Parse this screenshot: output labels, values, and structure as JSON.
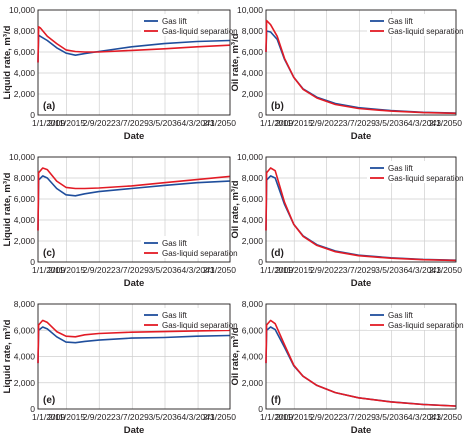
{
  "colors": {
    "gas_lift": "#1f4e9c",
    "gas_liquid_separation": "#e21b25"
  },
  "chart_data": [
    {
      "type": "line",
      "panel": "(a)",
      "xlabel": "Date",
      "ylabel": "Liquid rate, m³/d",
      "xlim": [
        "2009-01-01",
        "2050-02-01"
      ],
      "ylim": [
        0,
        10000
      ],
      "xticks": [
        "1/1/2009",
        "2/11/2015",
        "2/9/2022",
        "3/7/2029",
        "3/5/2036",
        "4/3/2043",
        "2/1/2050"
      ],
      "yticks": [
        "0",
        "2,000",
        "4,000",
        "6,000",
        "8,000",
        "10,000"
      ],
      "grid": true,
      "legend": "top-right",
      "series": [
        {
          "name": "Gas lift",
          "points": [
            [
              "2009-01-01",
              5000
            ],
            [
              "2009-02-15",
              7600
            ],
            [
              "2009-07-01",
              7500
            ],
            [
              "2011-01-01",
              7100
            ],
            [
              "2013-01-01",
              6400
            ],
            [
              "2015-01-01",
              5900
            ],
            [
              "2017-01-01",
              5700
            ],
            [
              "2019-01-01",
              5850
            ],
            [
              "2022-01-01",
              6050
            ],
            [
              "2029-01-01",
              6500
            ],
            [
              "2036-01-01",
              6800
            ],
            [
              "2043-01-01",
              7000
            ],
            [
              "2050-01-01",
              7100
            ]
          ]
        },
        {
          "name": "Gas-liquid separation",
          "points": [
            [
              "2009-01-01",
              5000
            ],
            [
              "2009-02-15",
              8400
            ],
            [
              "2009-07-01",
              8300
            ],
            [
              "2011-01-01",
              7500
            ],
            [
              "2013-01-01",
              6800
            ],
            [
              "2015-01-01",
              6200
            ],
            [
              "2017-01-01",
              6050
            ],
            [
              "2019-01-01",
              6000
            ],
            [
              "2022-01-01",
              6000
            ],
            [
              "2029-01-01",
              6150
            ],
            [
              "2036-01-01",
              6300
            ],
            [
              "2043-01-01",
              6500
            ],
            [
              "2050-01-01",
              6650
            ]
          ]
        }
      ]
    },
    {
      "type": "line",
      "panel": "(b)",
      "xlabel": "Date",
      "ylabel": "Oil rate, m³/d",
      "xlim": [
        "2009-01-01",
        "2050-02-01"
      ],
      "ylim": [
        0,
        10000
      ],
      "xticks": [
        "1/1/2009",
        "2/11/2015",
        "2/9/2022",
        "3/7/2029",
        "3/5/2036",
        "4/3/2043",
        "2/1/2050"
      ],
      "yticks": [
        "0",
        "2,000",
        "4,000",
        "6,000",
        "8,000",
        "10,000"
      ],
      "grid": true,
      "legend": "top-right",
      "series": [
        {
          "name": "Gas lift",
          "points": [
            [
              "2009-01-01",
              6000
            ],
            [
              "2009-02-15",
              8000
            ],
            [
              "2010-01-01",
              7900
            ],
            [
              "2011-06-01",
              7200
            ],
            [
              "2013-01-01",
              5300
            ],
            [
              "2015-01-01",
              3600
            ],
            [
              "2017-01-01",
              2500
            ],
            [
              "2020-01-01",
              1700
            ],
            [
              "2024-01-01",
              1100
            ],
            [
              "2029-01-01",
              700
            ],
            [
              "2036-01-01",
              420
            ],
            [
              "2043-01-01",
              260
            ],
            [
              "2050-01-01",
              180
            ]
          ]
        },
        {
          "name": "Gas-liquid separation",
          "points": [
            [
              "2009-01-01",
              6000
            ],
            [
              "2009-02-15",
              9000
            ],
            [
              "2010-01-01",
              8600
            ],
            [
              "2011-06-01",
              7500
            ],
            [
              "2013-01-01",
              5400
            ],
            [
              "2015-01-01",
              3600
            ],
            [
              "2017-01-01",
              2450
            ],
            [
              "2020-01-01",
              1620
            ],
            [
              "2024-01-01",
              1000
            ],
            [
              "2029-01-01",
              620
            ],
            [
              "2036-01-01",
              370
            ],
            [
              "2043-01-01",
              230
            ],
            [
              "2050-01-01",
              160
            ]
          ]
        }
      ]
    },
    {
      "type": "line",
      "panel": "(c)",
      "xlabel": "Date",
      "ylabel": "Liquid rate, m³/d",
      "xlim": [
        "2009-01-01",
        "2050-02-01"
      ],
      "ylim": [
        0,
        10000
      ],
      "xticks": [
        "1/1/2009",
        "2/11/2015",
        "2/9/2022",
        "3/7/2029",
        "3/5/2036",
        "4/3/2043",
        "2/1/2050"
      ],
      "yticks": [
        "0",
        "2,000",
        "4,000",
        "6,000",
        "8,000",
        "10,000"
      ],
      "grid": true,
      "legend": "bottom-right",
      "series": [
        {
          "name": "Gas lift",
          "points": [
            [
              "2009-01-01",
              3000
            ],
            [
              "2009-02-15",
              7800
            ],
            [
              "2010-01-01",
              8200
            ],
            [
              "2011-01-01",
              8000
            ],
            [
              "2013-01-01",
              7000
            ],
            [
              "2015-01-01",
              6400
            ],
            [
              "2017-01-01",
              6300
            ],
            [
              "2019-01-01",
              6500
            ],
            [
              "2022-01-01",
              6700
            ],
            [
              "2029-01-01",
              7000
            ],
            [
              "2036-01-01",
              7300
            ],
            [
              "2043-01-01",
              7550
            ],
            [
              "2050-01-01",
              7700
            ]
          ]
        },
        {
          "name": "Gas-liquid separation",
          "points": [
            [
              "2009-01-01",
              3000
            ],
            [
              "2009-02-15",
              8500
            ],
            [
              "2010-01-01",
              8950
            ],
            [
              "2011-01-01",
              8800
            ],
            [
              "2013-01-01",
              7700
            ],
            [
              "2015-01-01",
              7100
            ],
            [
              "2017-01-01",
              7000
            ],
            [
              "2019-01-01",
              7000
            ],
            [
              "2022-01-01",
              7050
            ],
            [
              "2029-01-01",
              7250
            ],
            [
              "2036-01-01",
              7550
            ],
            [
              "2043-01-01",
              7850
            ],
            [
              "2050-01-01",
              8150
            ]
          ]
        }
      ]
    },
    {
      "type": "line",
      "panel": "(d)",
      "xlabel": "Date",
      "ylabel": "Oil rate, m³/d",
      "xlim": [
        "2009-01-01",
        "2050-02-01"
      ],
      "ylim": [
        0,
        10000
      ],
      "xticks": [
        "1/1/2009",
        "2/11/2015",
        "2/9/2022",
        "3/7/2029",
        "3/5/2036",
        "4/3/2043",
        "2/1/2050"
      ],
      "yticks": [
        "0",
        "2,000",
        "4,000",
        "6,000",
        "8,000",
        "10,000"
      ],
      "grid": true,
      "legend": "top-right",
      "series": [
        {
          "name": "Gas lift",
          "points": [
            [
              "2009-01-01",
              3000
            ],
            [
              "2009-02-15",
              7800
            ],
            [
              "2010-01-01",
              8200
            ],
            [
              "2011-01-01",
              8000
            ],
            [
              "2013-01-01",
              5500
            ],
            [
              "2015-01-01",
              3600
            ],
            [
              "2017-01-01",
              2500
            ],
            [
              "2020-01-01",
              1650
            ],
            [
              "2024-01-01",
              1050
            ],
            [
              "2029-01-01",
              650
            ],
            [
              "2036-01-01",
              400
            ],
            [
              "2043-01-01",
              250
            ],
            [
              "2050-01-01",
              170
            ]
          ]
        },
        {
          "name": "Gas-liquid separation",
          "points": [
            [
              "2009-01-01",
              3000
            ],
            [
              "2009-02-15",
              8500
            ],
            [
              "2010-01-01",
              8950
            ],
            [
              "2011-01-01",
              8700
            ],
            [
              "2013-01-01",
              5700
            ],
            [
              "2015-01-01",
              3600
            ],
            [
              "2017-01-01",
              2450
            ],
            [
              "2020-01-01",
              1580
            ],
            [
              "2024-01-01",
              980
            ],
            [
              "2029-01-01",
              600
            ],
            [
              "2036-01-01",
              360
            ],
            [
              "2043-01-01",
              220
            ],
            [
              "2050-01-01",
              150
            ]
          ]
        }
      ]
    },
    {
      "type": "line",
      "panel": "(e)",
      "xlabel": "Date",
      "ylabel": "Liquid rate, m³/d",
      "xlim": [
        "2009-01-01",
        "2050-02-01"
      ],
      "ylim": [
        0,
        8000
      ],
      "xticks": [
        "1/1/2009",
        "2/11/2015",
        "2/9/2022",
        "3/7/2029",
        "3/5/2036",
        "4/3/2043",
        "2/1/2050"
      ],
      "yticks": [
        "0",
        "2,000",
        "4,000",
        "6,000",
        "8,000"
      ],
      "grid": true,
      "legend": "top-right",
      "series": [
        {
          "name": "Gas lift",
          "points": [
            [
              "2009-01-01",
              3500
            ],
            [
              "2009-02-15",
              6000
            ],
            [
              "2010-01-01",
              6250
            ],
            [
              "2011-01-01",
              6100
            ],
            [
              "2013-01-01",
              5500
            ],
            [
              "2015-01-01",
              5100
            ],
            [
              "2017-01-01",
              5050
            ],
            [
              "2019-01-01",
              5150
            ],
            [
              "2022-01-01",
              5250
            ],
            [
              "2029-01-01",
              5400
            ],
            [
              "2036-01-01",
              5450
            ],
            [
              "2043-01-01",
              5550
            ],
            [
              "2050-01-01",
              5600
            ]
          ]
        },
        {
          "name": "Gas-liquid separation",
          "points": [
            [
              "2009-01-01",
              3500
            ],
            [
              "2009-02-15",
              6400
            ],
            [
              "2010-01-01",
              6750
            ],
            [
              "2011-01-01",
              6600
            ],
            [
              "2013-01-01",
              5900
            ],
            [
              "2015-01-01",
              5550
            ],
            [
              "2017-01-01",
              5500
            ],
            [
              "2019-01-01",
              5650
            ],
            [
              "2022-01-01",
              5750
            ],
            [
              "2029-01-01",
              5850
            ],
            [
              "2036-01-01",
              5900
            ],
            [
              "2043-01-01",
              5950
            ],
            [
              "2050-01-01",
              6000
            ]
          ]
        }
      ]
    },
    {
      "type": "line",
      "panel": "(f)",
      "xlabel": "Date",
      "ylabel": "Oil rate, m³/d",
      "xlim": [
        "2009-01-01",
        "2050-02-01"
      ],
      "ylim": [
        0,
        8000
      ],
      "xticks": [
        "1/1/2009",
        "2/11/2015",
        "2/9/2022",
        "3/7/2029",
        "3/5/2036",
        "4/3/2043",
        "2/1/2050"
      ],
      "yticks": [
        "0",
        "2,000",
        "4,000",
        "6,000",
        "8,000"
      ],
      "grid": true,
      "legend": "top-right",
      "series": [
        {
          "name": "Gas lift",
          "points": [
            [
              "2009-01-01",
              3500
            ],
            [
              "2009-02-15",
              6000
            ],
            [
              "2010-01-01",
              6250
            ],
            [
              "2011-01-01",
              6050
            ],
            [
              "2013-01-01",
              4700
            ],
            [
              "2015-01-01",
              3300
            ],
            [
              "2017-01-01",
              2500
            ],
            [
              "2020-01-01",
              1800
            ],
            [
              "2024-01-01",
              1250
            ],
            [
              "2029-01-01",
              850
            ],
            [
              "2036-01-01",
              550
            ],
            [
              "2043-01-01",
              350
            ],
            [
              "2050-01-01",
              230
            ]
          ]
        },
        {
          "name": "Gas-liquid separation",
          "points": [
            [
              "2009-01-01",
              3500
            ],
            [
              "2009-02-15",
              6400
            ],
            [
              "2010-01-01",
              6750
            ],
            [
              "2011-01-01",
              6500
            ],
            [
              "2013-01-01",
              4900
            ],
            [
              "2015-01-01",
              3350
            ],
            [
              "2017-01-01",
              2500
            ],
            [
              "2020-01-01",
              1800
            ],
            [
              "2024-01-01",
              1250
            ],
            [
              "2029-01-01",
              850
            ],
            [
              "2036-01-01",
              540
            ],
            [
              "2043-01-01",
              340
            ],
            [
              "2050-01-01",
              220
            ]
          ]
        }
      ]
    }
  ]
}
